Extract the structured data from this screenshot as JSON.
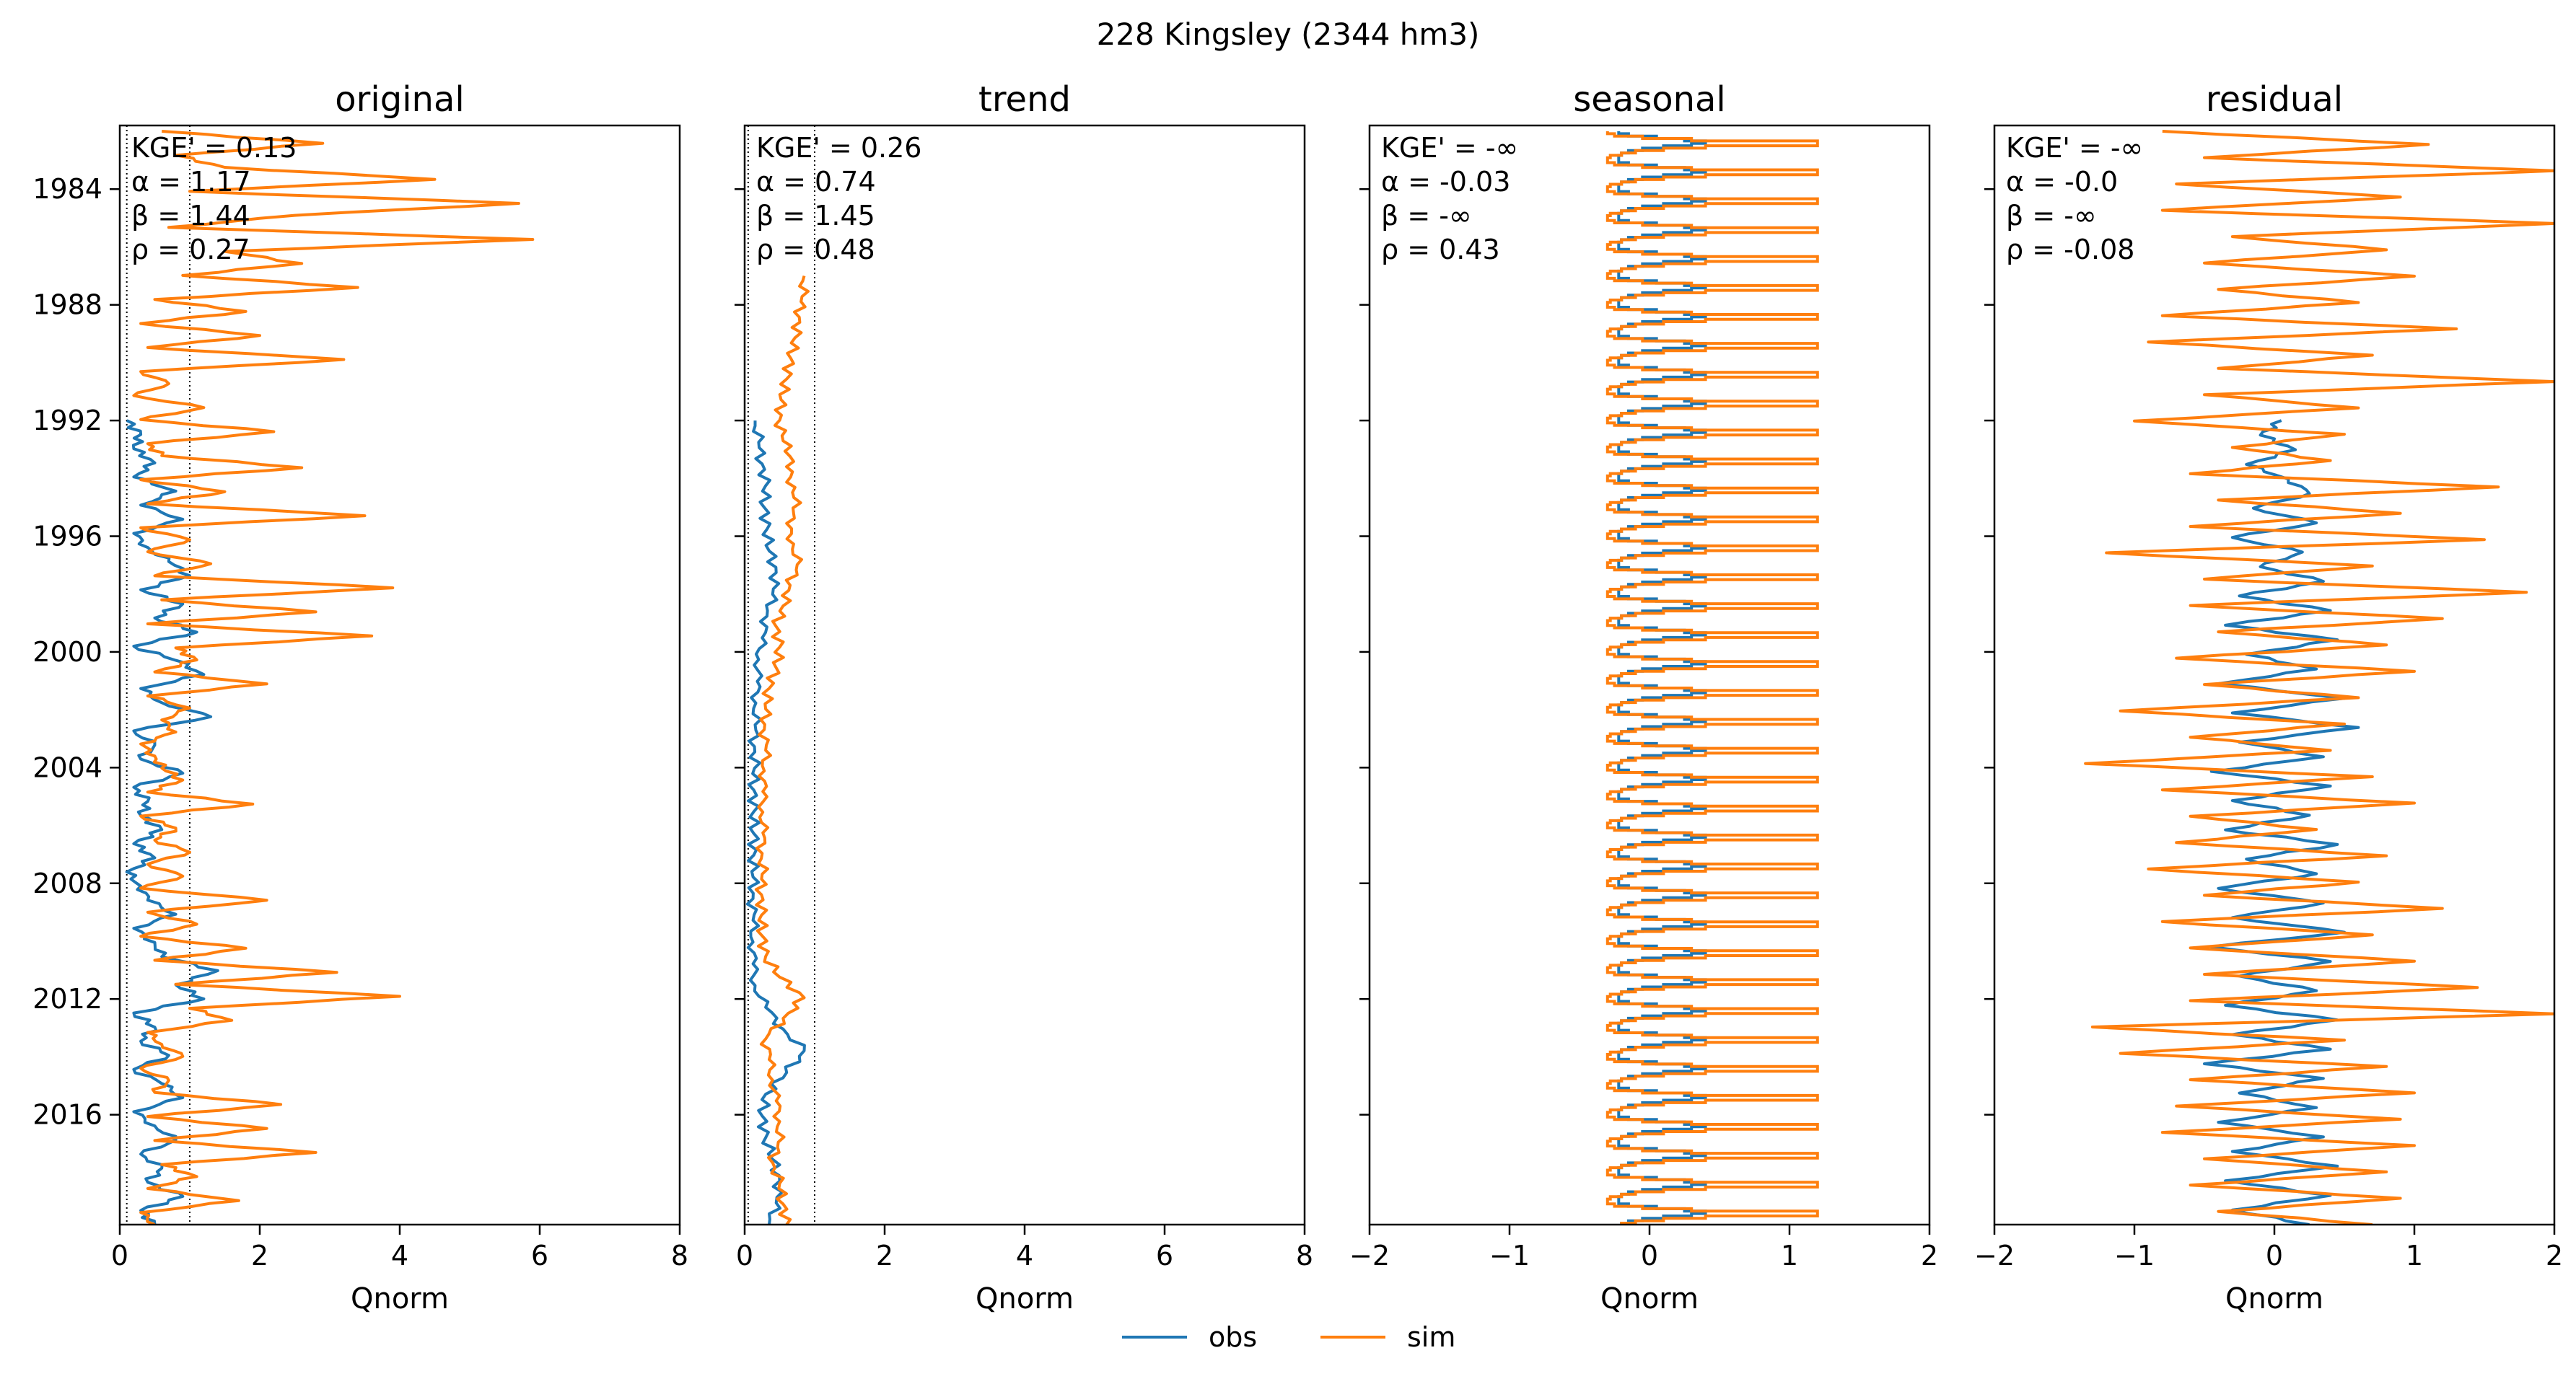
{
  "figure": {
    "suptitle": "228  Kingsley (2344 hm3)"
  },
  "chart_data": [
    {
      "type": "line",
      "title": "original",
      "xlabel": "Qnorm",
      "ylabel": "",
      "xlim": [
        0,
        8
      ],
      "ylim": [
        1981.8,
        2019.8
      ],
      "xticks": [
        "0",
        "2",
        "4",
        "6",
        "8"
      ],
      "yticks": [
        "1984",
        "1988",
        "1992",
        "1996",
        "2000",
        "2004",
        "2008",
        "2012",
        "2016"
      ],
      "reference_lines_x": [
        0.1,
        1.0
      ],
      "stats": [
        "KGE' = 0.13",
        "α = 1.17",
        "β = 1.44",
        "ρ = 0.27"
      ],
      "series": [
        {
          "name": "obs",
          "color": "#1f77b4",
          "start_year": 1992.0,
          "values": [
            0.1,
            0.3,
            0.2,
            0.5,
            0.2,
            0.8,
            0.3,
            0.9,
            0.2,
            0.4,
            0.7,
            1.0,
            0.3,
            0.9,
            0.5,
            1.1,
            0.2,
            0.8,
            1.2,
            0.3,
            0.6,
            1.3,
            0.2,
            0.5,
            0.3,
            0.9,
            0.2,
            0.4,
            0.3,
            0.6,
            0.2,
            0.5,
            0.1,
            0.3,
            0.4,
            0.8,
            0.2,
            0.5,
            0.6,
            1.4,
            0.8,
            1.2,
            0.2,
            0.5,
            0.3,
            0.7,
            0.2,
            0.6,
            0.9,
            0.2,
            0.5,
            0.8,
            0.3,
            0.6,
            0.4,
            0.9,
            0.3,
            0.5
          ]
        },
        {
          "name": "sim",
          "color": "#ff7f0e",
          "start_year": 1982.0,
          "values": [
            0.6,
            2.9,
            0.8,
            1.5,
            4.5,
            1.0,
            5.7,
            2.5,
            0.7,
            5.9,
            1.5,
            2.6,
            0.9,
            3.4,
            0.5,
            1.8,
            0.3,
            2.0,
            0.4,
            3.2,
            0.3,
            0.7,
            0.2,
            1.2,
            0.3,
            2.2,
            0.4,
            0.6,
            2.6,
            0.3,
            1.5,
            0.4,
            3.5,
            0.3,
            1.0,
            0.4,
            1.3,
            0.5,
            3.9,
            0.6,
            2.8,
            0.4,
            3.6,
            0.8,
            1.1,
            0.5,
            2.1,
            0.4,
            1.0,
            0.6,
            0.8,
            0.3,
            0.5,
            0.6,
            0.9,
            0.4,
            1.9,
            0.3,
            0.8,
            0.5,
            1.0,
            0.4,
            0.9,
            0.3,
            2.1,
            0.4,
            1.1,
            0.3,
            1.8,
            0.5,
            3.1,
            0.8,
            4.0,
            1.0,
            1.6,
            0.4,
            0.6,
            0.9,
            0.3,
            0.7,
            0.5,
            2.3,
            0.4,
            2.1,
            0.5,
            2.8,
            0.6,
            1.1,
            0.4,
            1.7,
            0.3,
            0.5
          ]
        }
      ]
    },
    {
      "type": "line",
      "title": "trend",
      "xlabel": "Qnorm",
      "ylabel": "",
      "xlim": [
        0,
        8
      ],
      "ylim": [
        1981.8,
        2019.8
      ],
      "xticks": [
        "0",
        "2",
        "4",
        "6",
        "8"
      ],
      "reference_lines_x": [
        0.05,
        1.0
      ],
      "stats": [
        "KGE' = 0.26",
        "α = 0.74",
        "β = 1.45",
        "ρ = 0.48"
      ],
      "series": [
        {
          "name": "obs",
          "color": "#1f77b4",
          "start_year": 1992.0,
          "values": [
            0.15,
            0.2,
            0.25,
            0.3,
            0.28,
            0.32,
            0.35,
            0.45,
            0.4,
            0.32,
            0.25,
            0.2,
            0.18,
            0.16,
            0.15,
            0.14,
            0.14,
            0.13,
            0.13,
            0.13,
            0.13,
            0.12,
            0.12,
            0.12,
            0.12,
            0.12,
            0.15,
            0.3,
            0.55,
            0.85,
            0.6,
            0.3,
            0.25,
            0.3,
            0.4,
            0.5,
            0.45,
            0.35
          ]
        },
        {
          "name": "sim",
          "color": "#ff7f0e",
          "start_year": 1987.0,
          "values": [
            0.85,
            0.82,
            0.78,
            0.72,
            0.66,
            0.6,
            0.52,
            0.5,
            0.55,
            0.7,
            0.6,
            0.8,
            0.6,
            0.7,
            0.75,
            0.65,
            0.55,
            0.45,
            0.5,
            0.45,
            0.35,
            0.3,
            0.28,
            0.3,
            0.28,
            0.26,
            0.26,
            0.26,
            0.25,
            0.25,
            0.24,
            0.24,
            0.25,
            0.3,
            0.5,
            0.85,
            0.55,
            0.3,
            0.35,
            0.4,
            0.45,
            0.5,
            0.48,
            0.4,
            0.5,
            0.55,
            0.6
          ]
        }
      ]
    },
    {
      "type": "line",
      "title": "seasonal",
      "xlabel": "Qnorm",
      "ylabel": "",
      "xlim": [
        -2,
        2
      ],
      "ylim": [
        1981.8,
        2019.8
      ],
      "xticks": [
        "−2",
        "−1",
        "0",
        "1",
        "2"
      ],
      "stats": [
        "KGE' = -∞",
        "α = -0.03",
        "β = -∞",
        "ρ = 0.43"
      ],
      "pattern": {
        "obs": {
          "color": "#1f77b4",
          "start_year": 1982.0,
          "end_year": 2019.8,
          "cycle": [
            -0.22,
            -0.15,
            0.05,
            0.25,
            0.4,
            0.3,
            0.1,
            -0.05,
            -0.15,
            -0.2,
            -0.22,
            -0.22
          ]
        },
        "sim": {
          "color": "#ff7f0e",
          "start_year": 1982.0,
          "end_year": 2019.8,
          "cycle": [
            -0.3,
            -0.25,
            -0.05,
            0.3,
            1.2,
            1.2,
            0.4,
            0.1,
            -0.1,
            -0.2,
            -0.28,
            -0.3
          ]
        }
      }
    },
    {
      "type": "line",
      "title": "residual",
      "xlabel": "Qnorm",
      "ylabel": "",
      "xlim": [
        -2,
        2
      ],
      "ylim": [
        1981.8,
        2019.8
      ],
      "xticks": [
        "−2",
        "−1",
        "0",
        "1",
        "2"
      ],
      "stats": [
        "KGE' = -∞",
        "α = -0.0",
        "β = -∞",
        "ρ = -0.08"
      ],
      "series": [
        {
          "name": "obs",
          "color": "#1f77b4",
          "start_year": 1992.0,
          "values": [
            0.05,
            -0.1,
            0.15,
            -0.2,
            0.1,
            0.25,
            -0.15,
            0.3,
            -0.3,
            0.2,
            -0.1,
            0.35,
            -0.25,
            0.4,
            -0.35,
            0.45,
            -0.2,
            0.3,
            -0.4,
            0.5,
            -0.3,
            0.6,
            -0.25,
            0.35,
            -0.45,
            0.4,
            -0.3,
            0.25,
            -0.35,
            0.45,
            -0.2,
            0.3,
            -0.4,
            0.35,
            -0.3,
            0.5,
            -0.45,
            0.4,
            -0.25,
            0.3,
            -0.35,
            0.45,
            -0.3,
            0.4,
            -0.5,
            0.35,
            -0.25,
            0.3,
            -0.4,
            0.35,
            -0.3,
            0.45,
            -0.35,
            0.4,
            -0.3,
            0.25
          ]
        },
        {
          "name": "sim",
          "color": "#ff7f0e",
          "start_year": 1982.0,
          "values": [
            -0.8,
            1.1,
            -0.5,
            2.0,
            -0.7,
            0.9,
            -0.8,
            2.0,
            -0.3,
            0.8,
            -0.5,
            1.0,
            -0.4,
            0.6,
            -0.8,
            1.3,
            -0.9,
            0.7,
            -0.4,
            2.0,
            -0.5,
            0.6,
            -1.0,
            0.5,
            -0.3,
            0.4,
            -0.6,
            1.6,
            -0.4,
            0.9,
            -0.6,
            1.5,
            -1.2,
            0.7,
            -0.5,
            1.8,
            -0.6,
            1.2,
            -0.4,
            0.8,
            -0.7,
            1.0,
            -0.5,
            0.6,
            -1.1,
            0.5,
            -0.6,
            0.4,
            -1.35,
            0.7,
            -0.8,
            1.0,
            -0.6,
            0.3,
            -0.7,
            0.8,
            -0.9,
            0.6,
            -0.5,
            1.2,
            -0.8,
            0.7,
            -0.6,
            1.0,
            -0.5,
            1.45,
            -0.6,
            2.0,
            -1.3,
            0.5,
            -1.1,
            0.8,
            -0.6,
            1.0,
            -0.7,
            0.9,
            -0.8,
            1.0,
            -0.5,
            0.8,
            -0.6,
            0.9,
            -0.4,
            0.7
          ]
        }
      ]
    }
  ],
  "legend": {
    "items": [
      "obs",
      "sim"
    ],
    "colors": [
      "#1f77b4",
      "#ff7f0e"
    ],
    "placement": "bottom-center"
  }
}
